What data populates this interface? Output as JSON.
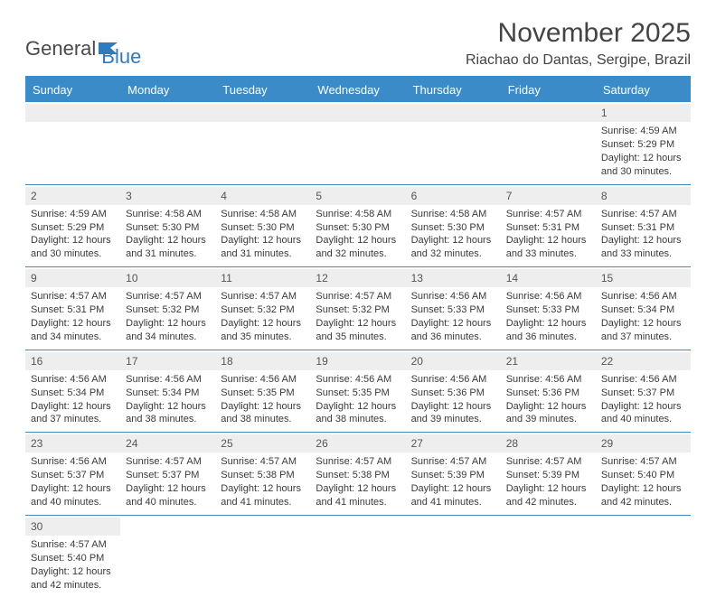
{
  "brand": {
    "part1": "General",
    "part2": "Blue"
  },
  "title": "November 2025",
  "location": "Riachao do Dantas, Sergipe, Brazil",
  "colors": {
    "header_bg": "#3b8bc8",
    "header_text": "#ffffff",
    "row_border": "#3b8bc8",
    "daynum_bg": "#eeeeee",
    "text": "#3a3a3a",
    "brand_gray": "#4a4a4a",
    "brand_blue": "#2f7bbf",
    "page_bg": "#ffffff"
  },
  "day_headers": [
    "Sunday",
    "Monday",
    "Tuesday",
    "Wednesday",
    "Thursday",
    "Friday",
    "Saturday"
  ],
  "weeks": [
    [
      null,
      null,
      null,
      null,
      null,
      null,
      {
        "n": "1",
        "sr": "Sunrise: 4:59 AM",
        "ss": "Sunset: 5:29 PM",
        "d1": "Daylight: 12 hours",
        "d2": "and 30 minutes."
      }
    ],
    [
      {
        "n": "2",
        "sr": "Sunrise: 4:59 AM",
        "ss": "Sunset: 5:29 PM",
        "d1": "Daylight: 12 hours",
        "d2": "and 30 minutes."
      },
      {
        "n": "3",
        "sr": "Sunrise: 4:58 AM",
        "ss": "Sunset: 5:30 PM",
        "d1": "Daylight: 12 hours",
        "d2": "and 31 minutes."
      },
      {
        "n": "4",
        "sr": "Sunrise: 4:58 AM",
        "ss": "Sunset: 5:30 PM",
        "d1": "Daylight: 12 hours",
        "d2": "and 31 minutes."
      },
      {
        "n": "5",
        "sr": "Sunrise: 4:58 AM",
        "ss": "Sunset: 5:30 PM",
        "d1": "Daylight: 12 hours",
        "d2": "and 32 minutes."
      },
      {
        "n": "6",
        "sr": "Sunrise: 4:58 AM",
        "ss": "Sunset: 5:30 PM",
        "d1": "Daylight: 12 hours",
        "d2": "and 32 minutes."
      },
      {
        "n": "7",
        "sr": "Sunrise: 4:57 AM",
        "ss": "Sunset: 5:31 PM",
        "d1": "Daylight: 12 hours",
        "d2": "and 33 minutes."
      },
      {
        "n": "8",
        "sr": "Sunrise: 4:57 AM",
        "ss": "Sunset: 5:31 PM",
        "d1": "Daylight: 12 hours",
        "d2": "and 33 minutes."
      }
    ],
    [
      {
        "n": "9",
        "sr": "Sunrise: 4:57 AM",
        "ss": "Sunset: 5:31 PM",
        "d1": "Daylight: 12 hours",
        "d2": "and 34 minutes."
      },
      {
        "n": "10",
        "sr": "Sunrise: 4:57 AM",
        "ss": "Sunset: 5:32 PM",
        "d1": "Daylight: 12 hours",
        "d2": "and 34 minutes."
      },
      {
        "n": "11",
        "sr": "Sunrise: 4:57 AM",
        "ss": "Sunset: 5:32 PM",
        "d1": "Daylight: 12 hours",
        "d2": "and 35 minutes."
      },
      {
        "n": "12",
        "sr": "Sunrise: 4:57 AM",
        "ss": "Sunset: 5:32 PM",
        "d1": "Daylight: 12 hours",
        "d2": "and 35 minutes."
      },
      {
        "n": "13",
        "sr": "Sunrise: 4:56 AM",
        "ss": "Sunset: 5:33 PM",
        "d1": "Daylight: 12 hours",
        "d2": "and 36 minutes."
      },
      {
        "n": "14",
        "sr": "Sunrise: 4:56 AM",
        "ss": "Sunset: 5:33 PM",
        "d1": "Daylight: 12 hours",
        "d2": "and 36 minutes."
      },
      {
        "n": "15",
        "sr": "Sunrise: 4:56 AM",
        "ss": "Sunset: 5:34 PM",
        "d1": "Daylight: 12 hours",
        "d2": "and 37 minutes."
      }
    ],
    [
      {
        "n": "16",
        "sr": "Sunrise: 4:56 AM",
        "ss": "Sunset: 5:34 PM",
        "d1": "Daylight: 12 hours",
        "d2": "and 37 minutes."
      },
      {
        "n": "17",
        "sr": "Sunrise: 4:56 AM",
        "ss": "Sunset: 5:34 PM",
        "d1": "Daylight: 12 hours",
        "d2": "and 38 minutes."
      },
      {
        "n": "18",
        "sr": "Sunrise: 4:56 AM",
        "ss": "Sunset: 5:35 PM",
        "d1": "Daylight: 12 hours",
        "d2": "and 38 minutes."
      },
      {
        "n": "19",
        "sr": "Sunrise: 4:56 AM",
        "ss": "Sunset: 5:35 PM",
        "d1": "Daylight: 12 hours",
        "d2": "and 38 minutes."
      },
      {
        "n": "20",
        "sr": "Sunrise: 4:56 AM",
        "ss": "Sunset: 5:36 PM",
        "d1": "Daylight: 12 hours",
        "d2": "and 39 minutes."
      },
      {
        "n": "21",
        "sr": "Sunrise: 4:56 AM",
        "ss": "Sunset: 5:36 PM",
        "d1": "Daylight: 12 hours",
        "d2": "and 39 minutes."
      },
      {
        "n": "22",
        "sr": "Sunrise: 4:56 AM",
        "ss": "Sunset: 5:37 PM",
        "d1": "Daylight: 12 hours",
        "d2": "and 40 minutes."
      }
    ],
    [
      {
        "n": "23",
        "sr": "Sunrise: 4:56 AM",
        "ss": "Sunset: 5:37 PM",
        "d1": "Daylight: 12 hours",
        "d2": "and 40 minutes."
      },
      {
        "n": "24",
        "sr": "Sunrise: 4:57 AM",
        "ss": "Sunset: 5:37 PM",
        "d1": "Daylight: 12 hours",
        "d2": "and 40 minutes."
      },
      {
        "n": "25",
        "sr": "Sunrise: 4:57 AM",
        "ss": "Sunset: 5:38 PM",
        "d1": "Daylight: 12 hours",
        "d2": "and 41 minutes."
      },
      {
        "n": "26",
        "sr": "Sunrise: 4:57 AM",
        "ss": "Sunset: 5:38 PM",
        "d1": "Daylight: 12 hours",
        "d2": "and 41 minutes."
      },
      {
        "n": "27",
        "sr": "Sunrise: 4:57 AM",
        "ss": "Sunset: 5:39 PM",
        "d1": "Daylight: 12 hours",
        "d2": "and 41 minutes."
      },
      {
        "n": "28",
        "sr": "Sunrise: 4:57 AM",
        "ss": "Sunset: 5:39 PM",
        "d1": "Daylight: 12 hours",
        "d2": "and 42 minutes."
      },
      {
        "n": "29",
        "sr": "Sunrise: 4:57 AM",
        "ss": "Sunset: 5:40 PM",
        "d1": "Daylight: 12 hours",
        "d2": "and 42 minutes."
      }
    ],
    [
      {
        "n": "30",
        "sr": "Sunrise: 4:57 AM",
        "ss": "Sunset: 5:40 PM",
        "d1": "Daylight: 12 hours",
        "d2": "and 42 minutes."
      },
      null,
      null,
      null,
      null,
      null,
      null
    ]
  ]
}
